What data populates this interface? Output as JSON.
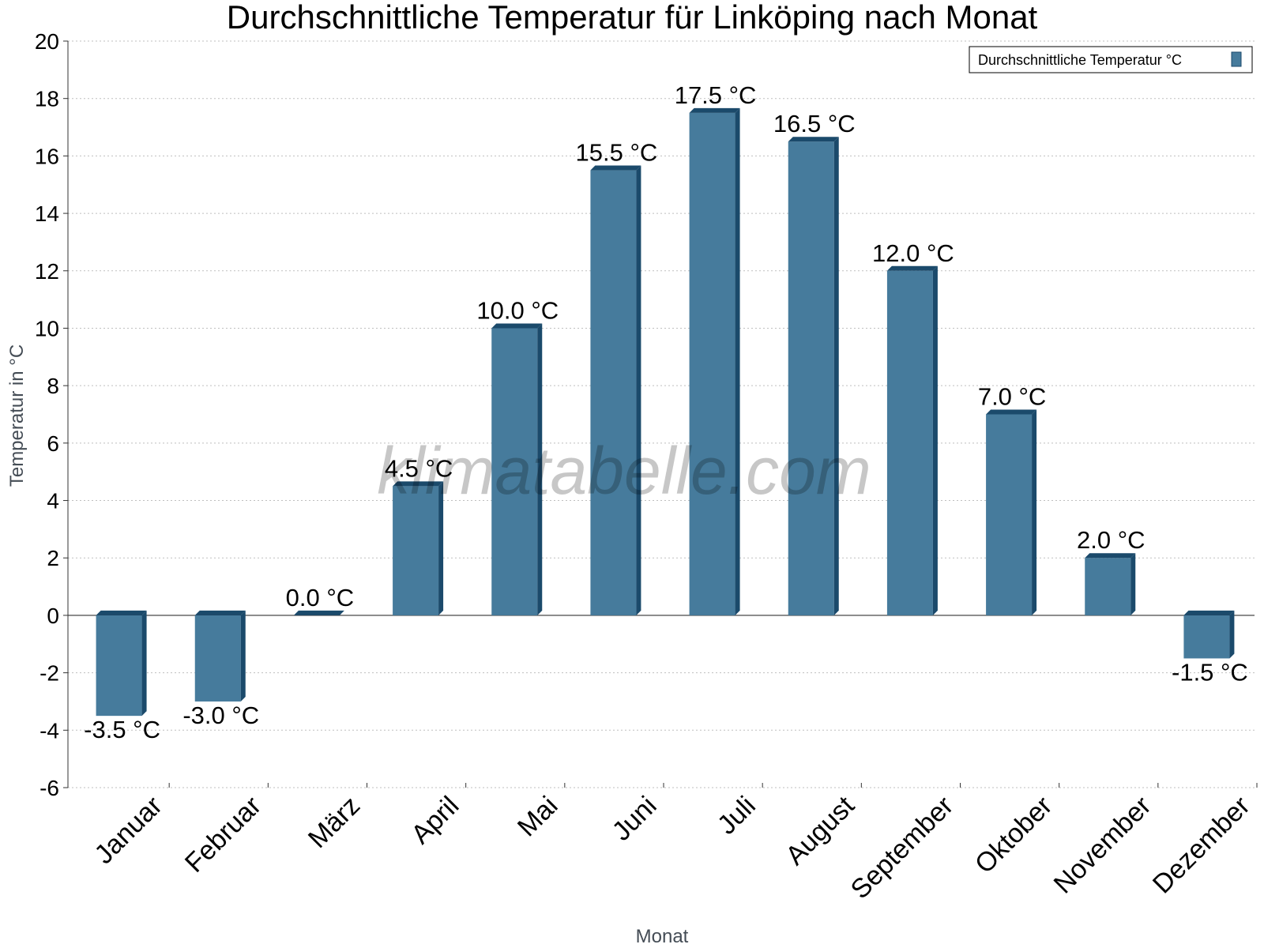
{
  "chart_data": {
    "type": "bar",
    "title": "Durchschnittliche Temperatur für Linköping nach Monat",
    "xlabel": "Monat",
    "ylabel": "Temperatur in °C",
    "categories": [
      "Januar",
      "Februar",
      "März",
      "April",
      "Mai",
      "Juni",
      "Juli",
      "August",
      "September",
      "Oktober",
      "November",
      "Dezember"
    ],
    "series": [
      {
        "name": "Durchschnittliche Temperatur °C",
        "values": [
          -3.5,
          -3.0,
          0.0,
          4.5,
          10.0,
          15.5,
          17.5,
          16.5,
          12.0,
          7.0,
          2.0,
          -1.5
        ],
        "labels": [
          "-3.5 °C",
          "-3.0 °C",
          "0.0 °C",
          "4.5 °C",
          "10.0 °C",
          "15.5 °C",
          "17.5 °C",
          "16.5 °C",
          "12.0 °C",
          "7.0 °C",
          "2.0 °C",
          "-1.5 °C"
        ],
        "color": "#467b9c",
        "edge_color": "#1b4a6b"
      }
    ],
    "ylim": [
      -6,
      20
    ],
    "yticks": [
      -6,
      -4,
      -2,
      0,
      2,
      4,
      6,
      8,
      10,
      12,
      14,
      16,
      18,
      20
    ],
    "grid": true,
    "legend_position": "top-right",
    "watermark": "klimatabelle.com"
  }
}
